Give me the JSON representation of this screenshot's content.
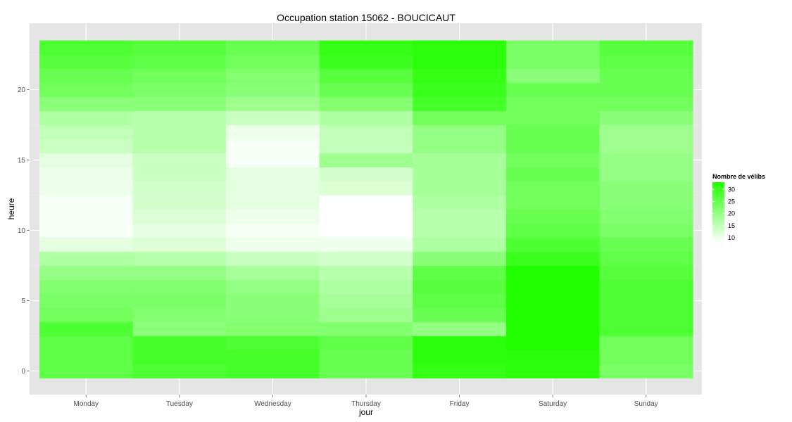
{
  "chart_data": {
    "type": "heatmap",
    "title": "Occupation station 15062 - BOUCICAUT",
    "xlabel": "jour",
    "ylabel": "heure",
    "x_categories": [
      "Monday",
      "Tuesday",
      "Wednesday",
      "Thursday",
      "Friday",
      "Saturday",
      "Sunday"
    ],
    "y_ticks": [
      0,
      5,
      10,
      15,
      20
    ],
    "y_range": [
      -0.5,
      23.5
    ],
    "legend": {
      "title": "Nombre de vélibs",
      "ticks": [
        10,
        15,
        20,
        25,
        30
      ],
      "range": [
        8,
        33
      ],
      "low_color": "#ffffff",
      "high_color": "#22ff00",
      "position": "right"
    },
    "grid": true,
    "panel_color": "#e5e5e5",
    "values": {
      "Monday": [
        26,
        26,
        26,
        28,
        24,
        23,
        22,
        20,
        17,
        11,
        9,
        9,
        9,
        10,
        10,
        11,
        14,
        15,
        17,
        21,
        24,
        25,
        27,
        28
      ],
      "Tuesday": [
        28,
        29,
        29,
        21,
        22,
        23,
        22,
        20,
        16,
        12,
        11,
        12,
        13,
        13,
        14,
        14,
        16,
        16,
        16,
        21,
        23,
        24,
        26,
        27
      ],
      "Wednesday": [
        29,
        29,
        28,
        22,
        21,
        21,
        20,
        18,
        14,
        10,
        9,
        10,
        11,
        11,
        11,
        9,
        9,
        10,
        14,
        19,
        21,
        22,
        24,
        25
      ],
      "Thursday": [
        25,
        25,
        26,
        22,
        19,
        18,
        17,
        16,
        13,
        10,
        8,
        8,
        8,
        12,
        13,
        19,
        15,
        15,
        17,
        22,
        25,
        27,
        30,
        31
      ],
      "Friday": [
        31,
        32,
        32,
        20,
        25,
        26,
        27,
        26,
        21,
        17,
        16,
        16,
        17,
        18,
        18,
        18,
        20,
        20,
        24,
        29,
        30,
        31,
        32,
        32
      ],
      "Saturday": [
        32,
        32,
        33,
        35,
        35,
        35,
        35,
        35,
        30,
        28,
        26,
        25,
        24,
        24,
        25,
        24,
        25,
        25,
        24,
        24,
        25,
        21,
        23,
        23
      ],
      "Sunday": [
        23,
        24,
        24,
        28,
        28,
        28,
        28,
        27,
        26,
        25,
        23,
        22,
        21,
        21,
        20,
        20,
        19,
        19,
        21,
        24,
        25,
        25,
        26,
        27
      ]
    }
  }
}
